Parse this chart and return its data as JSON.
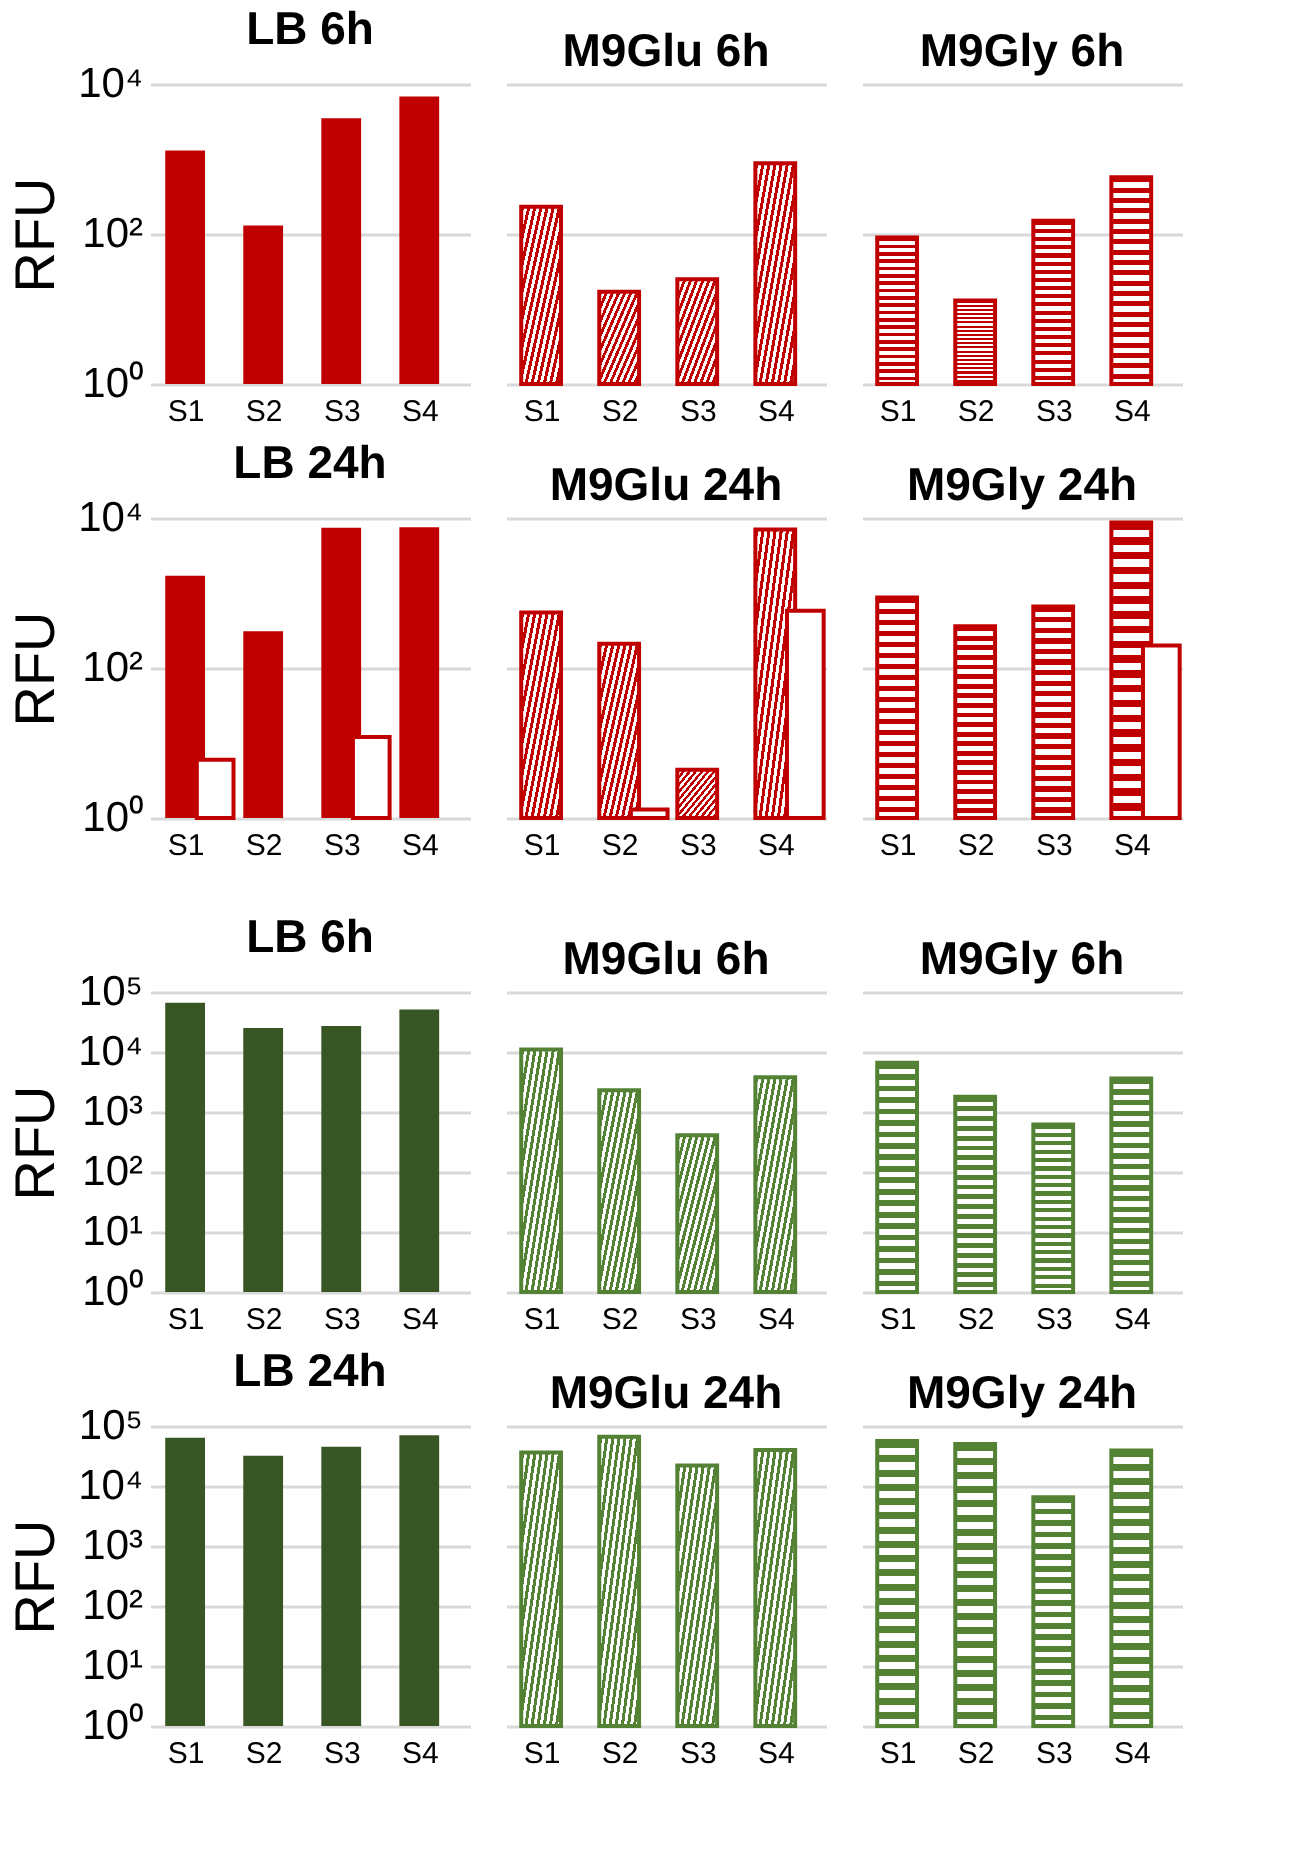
{
  "chart_data": [
    {
      "type": "bar",
      "title": "LB 6h",
      "ylabel": "RFU",
      "categories": [
        "S1",
        "S2",
        "S3",
        "S4"
      ],
      "series": [
        {
          "color": "#c00000",
          "values": [
            1300,
            130,
            3500,
            6800
          ]
        }
      ],
      "log": true,
      "ylim": [
        1,
        10000
      ],
      "yticks": [
        {
          "value": 1,
          "label": "10⁰"
        },
        {
          "value": 100,
          "label": "10²"
        },
        {
          "value": 10000,
          "label": "10⁴"
        }
      ],
      "grid": "y"
    },
    {
      "type": "bar",
      "title": "M9Glu 6h",
      "categories": [
        "S1",
        "S2",
        "S3",
        "S4"
      ],
      "series": [
        {
          "color": "#c00000",
          "values": [
            230,
            17,
            25,
            880
          ]
        }
      ],
      "log": true,
      "ylim": [
        1,
        10000
      ],
      "yticks": [
        {
          "value": 1,
          "label": null
        },
        {
          "value": 100,
          "label": null
        },
        {
          "value": 10000,
          "label": null
        }
      ],
      "grid": "y",
      "tick_labels": "x"
    },
    {
      "type": "bar",
      "title": "M9Gly 6h",
      "categories": [
        "S1",
        "S2",
        "S3",
        "S4"
      ],
      "series": [
        {
          "color": "#c00000",
          "values": [
            90,
            13,
            150,
            570
          ]
        }
      ],
      "log": true,
      "ylim": [
        1,
        10000
      ],
      "yticks": [
        {
          "value": 1,
          "label": null
        },
        {
          "value": 100,
          "label": null
        },
        {
          "value": 10000,
          "label": null
        }
      ],
      "grid": "y",
      "tick_labels": "x"
    },
    {
      "type": "bar",
      "title": "LB 24h",
      "ylabel": "RFU",
      "categories": [
        "S1",
        "S2",
        "S3",
        "S4"
      ],
      "series": [
        {
          "color": "#c00000",
          "values": [
            1700,
            310,
            7400,
            7500
          ]
        },
        {
          "color": "#ffffff",
          "values": [
            6,
            null,
            12,
            null
          ]
        }
      ],
      "log": true,
      "ylim": [
        1,
        10000
      ],
      "yticks": [
        {
          "value": 1,
          "label": "10⁰"
        },
        {
          "value": 100,
          "label": "10²"
        },
        {
          "value": 10000,
          "label": "10⁴"
        }
      ],
      "grid": "y"
    },
    {
      "type": "bar",
      "title": "M9Glu 24h",
      "categories": [
        "S1",
        "S2",
        "S3",
        "S4"
      ],
      "series": [
        {
          "color": "#c00000",
          "values": [
            550,
            210,
            4.4,
            7000
          ]
        },
        {
          "color": "#ffffff",
          "values": [
            null,
            1.3,
            null,
            580
          ]
        }
      ],
      "log": true,
      "ylim": [
        1,
        10000
      ],
      "yticks": [
        {
          "value": 1,
          "label": null
        },
        {
          "value": 100,
          "label": null
        },
        {
          "value": 10000,
          "label": null
        }
      ],
      "grid": "y",
      "tick_labels": "x"
    },
    {
      "type": "bar",
      "title": "M9Gly 24h",
      "categories": [
        "S1",
        "S2",
        "S3",
        "S4"
      ],
      "series": [
        {
          "color": "#c00000",
          "values": [
            870,
            360,
            660,
            8700
          ]
        },
        {
          "color": "#ffffff",
          "values": [
            null,
            null,
            null,
            200
          ]
        }
      ],
      "log": true,
      "ylim": [
        1,
        10000
      ],
      "yticks": [
        {
          "value": 1,
          "label": null
        },
        {
          "value": 100,
          "label": null
        },
        {
          "value": 10000,
          "label": null
        }
      ],
      "grid": "y",
      "tick_labels": "x"
    },
    {
      "type": "bar",
      "title": "LB 6h",
      "ylabel": "RFU",
      "categories": [
        "S1",
        "S2",
        "S3",
        "S4"
      ],
      "series": [
        {
          "color": "#375623",
          "values": [
            66000,
            25000,
            27000,
            51000
          ]
        }
      ],
      "log": true,
      "ylim": [
        1,
        100000
      ],
      "yticks": [
        {
          "value": 1,
          "label": "10⁰"
        },
        {
          "value": 10,
          "label": "10¹"
        },
        {
          "value": 100,
          "label": "10²"
        },
        {
          "value": 1000,
          "label": "10³"
        },
        {
          "value": 10000,
          "label": "10⁴"
        },
        {
          "value": 100000,
          "label": "10⁵"
        }
      ],
      "grid": "y"
    },
    {
      "type": "bar",
      "title": "M9Glu 6h",
      "categories": [
        "S1",
        "S2",
        "S3",
        "S4"
      ],
      "series": [
        {
          "color": "#548235",
          "values": [
            11000,
            2300,
            410,
            3800
          ]
        }
      ],
      "log": true,
      "ylim": [
        1,
        100000
      ],
      "yticks": [
        {
          "value": 1,
          "label": null
        },
        {
          "value": 10,
          "label": null
        },
        {
          "value": 100,
          "label": null
        },
        {
          "value": 1000,
          "label": null
        },
        {
          "value": 10000,
          "label": null
        },
        {
          "value": 100000,
          "label": null
        }
      ],
      "grid": "y",
      "tick_labels": "x"
    },
    {
      "type": "bar",
      "title": "M9Gly 6h",
      "categories": [
        "S1",
        "S2",
        "S3",
        "S4"
      ],
      "series": [
        {
          "color": "#548235",
          "values": [
            6600,
            1800,
            620,
            3600
          ]
        }
      ],
      "log": true,
      "ylim": [
        1,
        100000
      ],
      "yticks": [
        {
          "value": 1,
          "label": null
        },
        {
          "value": 10,
          "label": null
        },
        {
          "value": 100,
          "label": null
        },
        {
          "value": 1000,
          "label": null
        },
        {
          "value": 10000,
          "label": null
        },
        {
          "value": 100000,
          "label": null
        }
      ],
      "grid": "y",
      "tick_labels": "x"
    },
    {
      "type": "bar",
      "title": "LB 24h",
      "ylabel": "RFU",
      "categories": [
        "S1",
        "S2",
        "S3",
        "S4"
      ],
      "series": [
        {
          "color": "#375623",
          "values": [
            64000,
            32000,
            45000,
            70000
          ]
        }
      ],
      "log": true,
      "ylim": [
        1,
        100000
      ],
      "yticks": [
        {
          "value": 1,
          "label": "10⁰"
        },
        {
          "value": 10,
          "label": "10¹"
        },
        {
          "value": 100,
          "label": "10²"
        },
        {
          "value": 1000,
          "label": "10³"
        },
        {
          "value": 10000,
          "label": "10⁴"
        },
        {
          "value": 100000,
          "label": "10⁵"
        }
      ],
      "grid": "y"
    },
    {
      "type": "bar",
      "title": "M9Glu 24h",
      "categories": [
        "S1",
        "S2",
        "S3",
        "S4"
      ],
      "series": [
        {
          "color": "#548235",
          "values": [
            36000,
            66000,
            22000,
            40000
          ]
        }
      ],
      "log": true,
      "ylim": [
        1,
        100000
      ],
      "yticks": [
        {
          "value": 1,
          "label": null
        },
        {
          "value": 10,
          "label": null
        },
        {
          "value": 100,
          "label": null
        },
        {
          "value": 1000,
          "label": null
        },
        {
          "value": 10000,
          "label": null
        },
        {
          "value": 100000,
          "label": null
        }
      ],
      "grid": "y",
      "tick_labels": "x"
    },
    {
      "type": "bar",
      "title": "M9Gly 24h",
      "categories": [
        "S1",
        "S2",
        "S3",
        "S4"
      ],
      "series": [
        {
          "color": "#548235",
          "values": [
            56000,
            50000,
            6500,
            39000
          ]
        }
      ],
      "log": true,
      "ylim": [
        1,
        100000
      ],
      "yticks": [
        {
          "value": 1,
          "label": null
        },
        {
          "value": 10,
          "label": null
        },
        {
          "value": 100,
          "label": null
        },
        {
          "value": 1000,
          "label": null
        },
        {
          "value": 10000,
          "label": null
        },
        {
          "value": 100000,
          "label": null
        }
      ],
      "grid": "y",
      "tick_labels": "x"
    }
  ]
}
